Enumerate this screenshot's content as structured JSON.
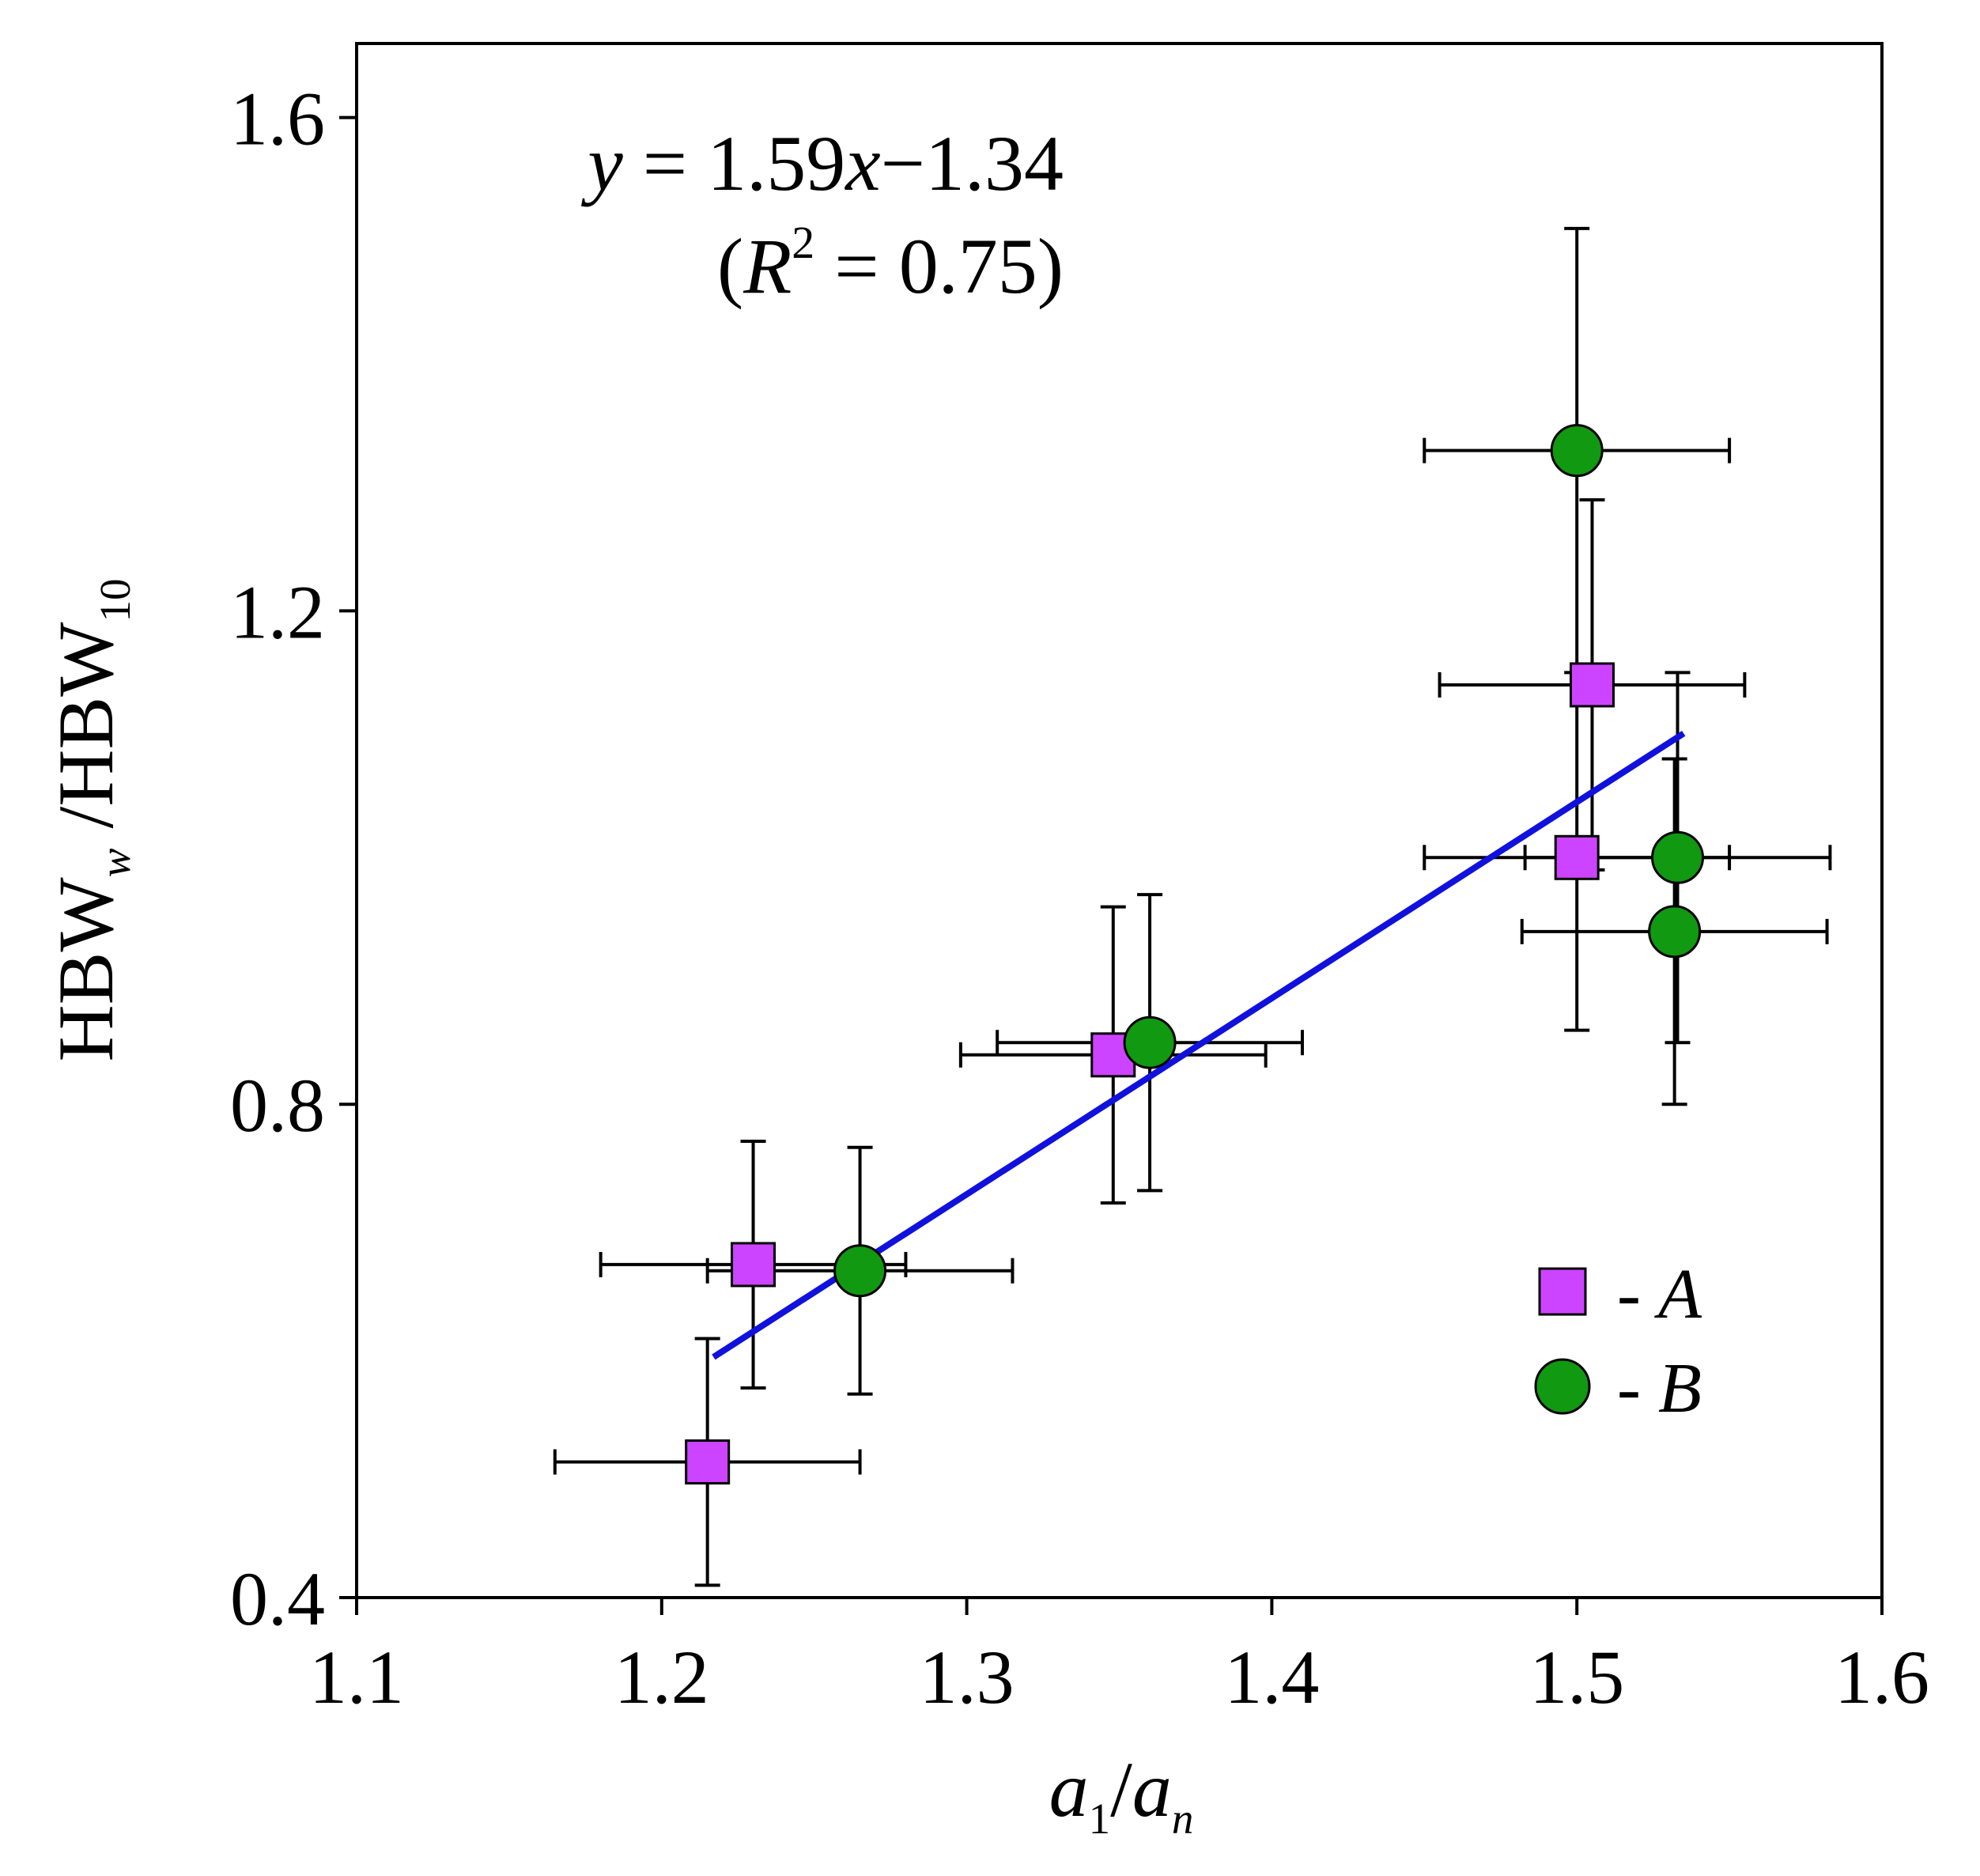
{
  "chart_data": {
    "type": "scatter",
    "title": "",
    "xlabel": {
      "main": "a",
      "sub1": "1",
      "slash": "/",
      "main2": "a",
      "sub2": "n"
    },
    "ylabel": {
      "part1": "HBW",
      "sub1": "w",
      "part2": " /HBW",
      "sub2": "10"
    },
    "xlim": [
      1.1,
      1.6
    ],
    "ylim": [
      0.4,
      1.66
    ],
    "x_ticks": [
      {
        "value": 1.1,
        "label": "1.1"
      },
      {
        "value": 1.2,
        "label": "1.2"
      },
      {
        "value": 1.3,
        "label": "1.3"
      },
      {
        "value": 1.4,
        "label": "1.4"
      },
      {
        "value": 1.5,
        "label": "1.5"
      },
      {
        "value": 1.6,
        "label": "1.6"
      }
    ],
    "y_ticks": [
      {
        "value": 0.4,
        "label": "0.4"
      },
      {
        "value": 0.8,
        "label": "0.8"
      },
      {
        "value": 1.2,
        "label": "1.2"
      },
      {
        "value": 1.6,
        "label": "1.6"
      }
    ],
    "grid": false,
    "series": [
      {
        "name": "A",
        "marker": "square",
        "color": "#cc44ff",
        "points": [
          {
            "x": 1.215,
            "y": 0.51,
            "xerr": 0.05,
            "yerr": 0.1
          },
          {
            "x": 1.23,
            "y": 0.67,
            "xerr": 0.05,
            "yerr": 0.1
          },
          {
            "x": 1.348,
            "y": 0.84,
            "xerr": 0.05,
            "yerr": 0.12
          },
          {
            "x": 1.505,
            "y": 1.14,
            "xerr": 0.05,
            "yerr": 0.15
          },
          {
            "x": 1.5,
            "y": 1.0,
            "xerr": 0.05,
            "yerr": 0.14
          }
        ]
      },
      {
        "name": "B",
        "marker": "circle",
        "color": "#119911",
        "points": [
          {
            "x": 1.265,
            "y": 0.665,
            "xerr": 0.05,
            "yerr": 0.1
          },
          {
            "x": 1.36,
            "y": 0.85,
            "xerr": 0.05,
            "yerr": 0.12
          },
          {
            "x": 1.5,
            "y": 1.33,
            "xerr": 0.05,
            "yerr": 0.18
          },
          {
            "x": 1.533,
            "y": 1.0,
            "xerr": 0.05,
            "yerr": 0.15
          },
          {
            "x": 1.532,
            "y": 0.94,
            "xerr": 0.05,
            "yerr": 0.14
          }
        ]
      }
    ],
    "fit_line": {
      "color": "#1111dd",
      "x_range": [
        1.217,
        1.535
      ],
      "slope": 1.59,
      "intercept": -1.34
    },
    "annotation": {
      "line1_y": "y",
      "line1_eq": " = 1.59",
      "line1_x": "x",
      "line1_rest": "−1.34",
      "line2_open": "(",
      "line2_R": "R",
      "line2_sup": "2",
      "line2_rest": " = 0.75)"
    },
    "legend": {
      "position": "lower-right",
      "entries": [
        {
          "dash": "-",
          "label": "A"
        },
        {
          "dash": "-",
          "label": "B"
        }
      ]
    }
  }
}
